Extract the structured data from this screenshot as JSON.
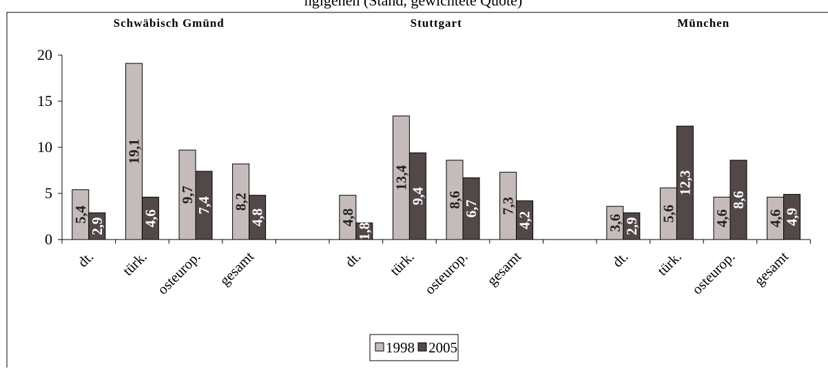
{
  "page": {
    "truncated_caption": "ngigenen (Stand, gewichtete Quote)"
  },
  "chart_data": {
    "type": "bar",
    "groups": [
      {
        "title": "Schwäbisch Gmünd",
        "categories": [
          "dt.",
          "türk.",
          "osteurop.",
          "gesamt"
        ]
      },
      {
        "title": "Stuttgart",
        "categories": [
          "dt.",
          "türk.",
          "osteurop.",
          "gesamt"
        ]
      },
      {
        "title": "München",
        "categories": [
          "dt.",
          "türk.",
          "osteurop.",
          "gesamt"
        ]
      }
    ],
    "series": [
      {
        "name": "1998",
        "color": "#c5bbbb",
        "values": [
          5.4,
          19.1,
          9.7,
          8.2,
          4.8,
          13.4,
          8.6,
          7.3,
          3.6,
          5.6,
          4.6,
          4.6
        ],
        "labels": [
          "5,4",
          "19,1",
          "9,7",
          "8,2",
          "4,8",
          "13,4",
          "8,6",
          "7,3",
          "3,6",
          "5,6",
          "4,6",
          "4,6"
        ]
      },
      {
        "name": "2005",
        "color": "#524848",
        "values": [
          2.9,
          4.6,
          7.4,
          4.8,
          1.8,
          9.4,
          6.7,
          4.2,
          2.9,
          12.3,
          8.6,
          4.9
        ],
        "labels": [
          "2,9",
          "4,6",
          "7,4",
          "4,8",
          "1,8",
          "9,4",
          "6,7",
          "4,2",
          "2,9",
          "12,3",
          "8,6",
          "4,9"
        ]
      }
    ],
    "y_ticks": [
      "0",
      "5",
      "10",
      "15",
      "20"
    ],
    "ylim": [
      0,
      20
    ],
    "grid": false,
    "legend": {
      "placement": "bottom-center",
      "entries": [
        "1998",
        "2005"
      ]
    }
  }
}
